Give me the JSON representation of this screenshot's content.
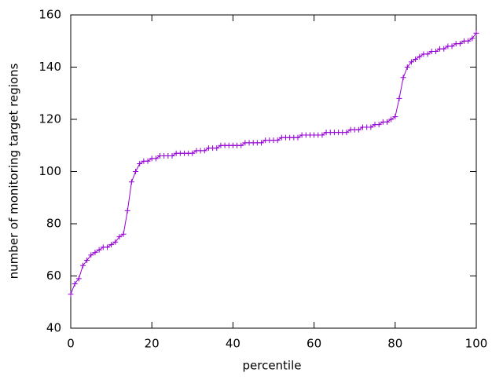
{
  "chart_data": {
    "type": "line",
    "xlabel": "percentile",
    "ylabel": "number of monitoring target regions",
    "x": [
      0,
      1,
      2,
      3,
      4,
      5,
      6,
      7,
      8,
      9,
      10,
      11,
      12,
      13,
      14,
      15,
      16,
      17,
      18,
      19,
      20,
      21,
      22,
      23,
      24,
      25,
      26,
      27,
      28,
      29,
      30,
      31,
      32,
      33,
      34,
      35,
      36,
      37,
      38,
      39,
      40,
      41,
      42,
      43,
      44,
      45,
      46,
      47,
      48,
      49,
      50,
      51,
      52,
      53,
      54,
      55,
      56,
      57,
      58,
      59,
      60,
      61,
      62,
      63,
      64,
      65,
      66,
      67,
      68,
      69,
      70,
      71,
      72,
      73,
      74,
      75,
      76,
      77,
      78,
      79,
      80,
      81,
      82,
      83,
      84,
      85,
      86,
      87,
      88,
      89,
      90,
      91,
      92,
      93,
      94,
      95,
      96,
      97,
      98,
      99,
      100
    ],
    "series": [
      {
        "color": "#9400d3",
        "values": [
          53,
          57,
          59,
          64,
          66,
          68,
          69,
          70,
          71,
          71,
          72,
          73,
          75,
          76,
          85,
          96,
          100,
          103,
          104,
          104,
          105,
          105,
          106,
          106,
          106,
          106,
          107,
          107,
          107,
          107,
          107,
          108,
          108,
          108,
          109,
          109,
          109,
          110,
          110,
          110,
          110,
          110,
          110,
          111,
          111,
          111,
          111,
          111,
          112,
          112,
          112,
          112,
          113,
          113,
          113,
          113,
          113,
          114,
          114,
          114,
          114,
          114,
          114,
          115,
          115,
          115,
          115,
          115,
          115,
          116,
          116,
          116,
          117,
          117,
          117,
          118,
          118,
          119,
          119,
          120,
          121,
          128,
          136,
          140,
          142,
          143,
          144,
          145,
          145,
          146,
          146,
          147,
          147,
          148,
          148,
          149,
          149,
          150,
          150,
          151,
          153
        ]
      }
    ],
    "xlim": [
      0,
      100
    ],
    "ylim": [
      40,
      160
    ],
    "xticks": [
      0,
      20,
      40,
      60,
      80,
      100
    ],
    "yticks": [
      40,
      60,
      80,
      100,
      120,
      140,
      160
    ]
  }
}
